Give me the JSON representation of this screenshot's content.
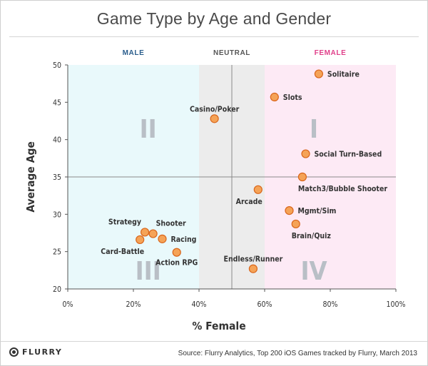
{
  "chart_data": {
    "type": "scatter",
    "title": "Game Type by Age and Gender",
    "xlabel": "% Female",
    "ylabel": "Average Age",
    "xlim": [
      0,
      100
    ],
    "ylim": [
      20,
      50
    ],
    "xticks": [
      "0%",
      "20%",
      "40%",
      "60%",
      "80%",
      "100%"
    ],
    "yticks": [
      20,
      25,
      30,
      35,
      40,
      45,
      50
    ],
    "zones": [
      {
        "label": "MALE",
        "from": 0,
        "to": 40,
        "color": "#e9f9fb",
        "text_color": "#2a5d8c"
      },
      {
        "label": "NEUTRAL",
        "from": 40,
        "to": 60,
        "color": "#ececec",
        "text_color": "#555555"
      },
      {
        "label": "FEMALE",
        "from": 60,
        "to": 100,
        "color": "#fdeaf5",
        "text_color": "#e0408a"
      }
    ],
    "dividers": {
      "x": 50,
      "y": 35
    },
    "quadrants": [
      {
        "label": "I",
        "x": 75,
        "y": 41.5
      },
      {
        "label": "II",
        "x": 24.5,
        "y": 41.5
      },
      {
        "label": "III",
        "x": 24.5,
        "y": 22.5
      },
      {
        "label": "IV",
        "x": 75,
        "y": 22.5
      }
    ],
    "points": [
      {
        "name": "Solitaire",
        "x": 76.5,
        "y": 48.8,
        "anchor": "right"
      },
      {
        "name": "Slots",
        "x": 63,
        "y": 45.7,
        "anchor": "right"
      },
      {
        "name": "Casino/Poker",
        "x": 44.7,
        "y": 42.8,
        "anchor": "above"
      },
      {
        "name": "Social Turn-Based",
        "x": 72.5,
        "y": 38.1,
        "anchor": "right"
      },
      {
        "name": "Match3/Bubble Shooter",
        "x": 71.5,
        "y": 35,
        "anchor": "below-right"
      },
      {
        "name": "Arcade",
        "x": 58,
        "y": 33.3,
        "anchor": "below-left"
      },
      {
        "name": "Mgmt/Sim",
        "x": 67.5,
        "y": 30.5,
        "anchor": "right"
      },
      {
        "name": "Brain/Quiz",
        "x": 69.5,
        "y": 28.7,
        "anchor": "below-right"
      },
      {
        "name": "Endless/Runner",
        "x": 56.5,
        "y": 22.7,
        "anchor": "above"
      },
      {
        "name": "Strategy",
        "x": 23.5,
        "y": 27.6,
        "anchor": "upper-left"
      },
      {
        "name": "Shooter",
        "x": 26,
        "y": 27.4,
        "anchor": "upper-right"
      },
      {
        "name": "Racing",
        "x": 28.8,
        "y": 26.7,
        "anchor": "right"
      },
      {
        "name": "Card-Battle",
        "x": 22,
        "y": 26.6,
        "anchor": "below-left"
      },
      {
        "name": "Action RPG",
        "x": 33.2,
        "y": 24.9,
        "anchor": "below"
      }
    ],
    "marker_color": "#f5a357",
    "marker_edge": "#d9651a"
  },
  "footer": {
    "brand": "FLURRY",
    "source": "Source: Flurry Analytics, Top 200 iOS Games tracked by Flurry, March 2013"
  }
}
